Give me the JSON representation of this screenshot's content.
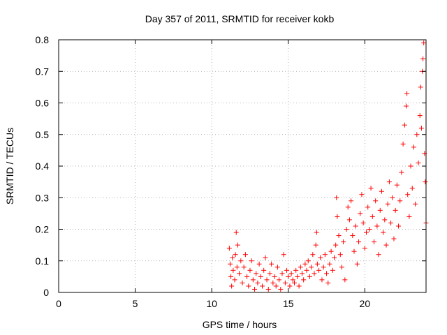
{
  "chart_data": {
    "type": "scatter",
    "title": "Day 357 of 2011, SRMTID for receiver kokb",
    "xlabel": "GPS time / hours",
    "ylabel": "SRMTID / TECUs",
    "xlim": [
      0,
      24
    ],
    "ylim": [
      0,
      0.8
    ],
    "xticks": [
      0,
      5,
      10,
      15,
      20
    ],
    "xtick_labels": [
      "0",
      "5",
      "10",
      "15",
      "20"
    ],
    "yticks": [
      0,
      0.1,
      0.2,
      0.3,
      0.4,
      0.5,
      0.6,
      0.7,
      0.8
    ],
    "ytick_labels": [
      "0",
      "0.1",
      "0.2",
      "0.3",
      "0.4",
      "0.5",
      "0.6",
      "0.7",
      "0.8"
    ],
    "grid": true,
    "marker": "+",
    "series": [
      {
        "name": "SRMTID",
        "color": "#ff0000",
        "points": [
          [
            11.15,
            0.14
          ],
          [
            11.2,
            0.09
          ],
          [
            11.25,
            0.05
          ],
          [
            11.3,
            0.02
          ],
          [
            11.35,
            0.11
          ],
          [
            11.4,
            0.07
          ],
          [
            11.5,
            0.04
          ],
          [
            11.55,
            0.12
          ],
          [
            11.6,
            0.19
          ],
          [
            11.65,
            0.08
          ],
          [
            11.7,
            0.15
          ],
          [
            11.8,
            0.06
          ],
          [
            11.9,
            0.1
          ],
          [
            12.0,
            0.03
          ],
          [
            12.1,
            0.08
          ],
          [
            12.2,
            0.12
          ],
          [
            12.3,
            0.05
          ],
          [
            12.4,
            0.02
          ],
          [
            12.5,
            0.07
          ],
          [
            12.6,
            0.1
          ],
          [
            12.7,
            0.04
          ],
          [
            12.8,
            0.01
          ],
          [
            12.9,
            0.06
          ],
          [
            13.0,
            0.03
          ],
          [
            13.1,
            0.09
          ],
          [
            13.2,
            0.05
          ],
          [
            13.3,
            0.02
          ],
          [
            13.4,
            0.07
          ],
          [
            13.5,
            0.11
          ],
          [
            13.6,
            0.04
          ],
          [
            13.7,
            0.01
          ],
          [
            13.8,
            0.06
          ],
          [
            13.9,
            0.09
          ],
          [
            14.0,
            0.03
          ],
          [
            14.1,
            0.05
          ],
          [
            14.2,
            0.02
          ],
          [
            14.3,
            0.08
          ],
          [
            14.4,
            0.04
          ],
          [
            14.5,
            0.01
          ],
          [
            14.6,
            0.06
          ],
          [
            14.7,
            0.12
          ],
          [
            14.8,
            0.03
          ],
          [
            14.9,
            0.07
          ],
          [
            15.0,
            0.05
          ],
          [
            15.1,
            0.02
          ],
          [
            15.2,
            0.06
          ],
          [
            15.3,
            0.04
          ],
          [
            15.4,
            0.03
          ],
          [
            15.5,
            0.07
          ],
          [
            15.6,
            0.05
          ],
          [
            15.7,
            0.02
          ],
          [
            15.8,
            0.08
          ],
          [
            15.9,
            0.06
          ],
          [
            16.0,
            0.04
          ],
          [
            16.1,
            0.09
          ],
          [
            16.2,
            0.07
          ],
          [
            16.3,
            0.1
          ],
          [
            16.4,
            0.05
          ],
          [
            16.5,
            0.08
          ],
          [
            16.6,
            0.12
          ],
          [
            16.7,
            0.06
          ],
          [
            16.8,
            0.15
          ],
          [
            16.85,
            0.19
          ],
          [
            16.9,
            0.09
          ],
          [
            17.0,
            0.07
          ],
          [
            17.1,
            0.11
          ],
          [
            17.2,
            0.04
          ],
          [
            17.3,
            0.08
          ],
          [
            17.4,
            0.12
          ],
          [
            17.5,
            0.06
          ],
          [
            17.6,
            0.03
          ],
          [
            17.7,
            0.09
          ],
          [
            17.8,
            0.13
          ],
          [
            17.9,
            0.07
          ],
          [
            18.0,
            0.11
          ],
          [
            18.1,
            0.15
          ],
          [
            18.15,
            0.3
          ],
          [
            18.2,
            0.24
          ],
          [
            18.3,
            0.18
          ],
          [
            18.4,
            0.12
          ],
          [
            18.5,
            0.08
          ],
          [
            18.6,
            0.16
          ],
          [
            18.7,
            0.04
          ],
          [
            18.8,
            0.2
          ],
          [
            18.9,
            0.27
          ],
          [
            19.0,
            0.23
          ],
          [
            19.1,
            0.29
          ],
          [
            19.2,
            0.18
          ],
          [
            19.3,
            0.13
          ],
          [
            19.4,
            0.21
          ],
          [
            19.5,
            0.09
          ],
          [
            19.6,
            0.16
          ],
          [
            19.7,
            0.25
          ],
          [
            19.8,
            0.31
          ],
          [
            19.9,
            0.22
          ],
          [
            20.0,
            0.14
          ],
          [
            20.1,
            0.19
          ],
          [
            20.2,
            0.27
          ],
          [
            20.3,
            0.2
          ],
          [
            20.4,
            0.33
          ],
          [
            20.5,
            0.24
          ],
          [
            20.6,
            0.16
          ],
          [
            20.7,
            0.29
          ],
          [
            20.8,
            0.21
          ],
          [
            20.9,
            0.12
          ],
          [
            21.0,
            0.26
          ],
          [
            21.1,
            0.32
          ],
          [
            21.2,
            0.19
          ],
          [
            21.3,
            0.23
          ],
          [
            21.4,
            0.15
          ],
          [
            21.5,
            0.28
          ],
          [
            21.6,
            0.35
          ],
          [
            21.7,
            0.22
          ],
          [
            21.8,
            0.3
          ],
          [
            21.9,
            0.17
          ],
          [
            22.0,
            0.26
          ],
          [
            22.1,
            0.34
          ],
          [
            22.2,
            0.21
          ],
          [
            22.3,
            0.29
          ],
          [
            22.4,
            0.38
          ],
          [
            22.5,
            0.47
          ],
          [
            22.6,
            0.53
          ],
          [
            22.7,
            0.59
          ],
          [
            22.75,
            0.63
          ],
          [
            22.8,
            0.31
          ],
          [
            22.9,
            0.24
          ],
          [
            23.0,
            0.4
          ],
          [
            23.1,
            0.33
          ],
          [
            23.2,
            0.46
          ],
          [
            23.3,
            0.28
          ],
          [
            23.4,
            0.5
          ],
          [
            23.5,
            0.41
          ],
          [
            23.6,
            0.56
          ],
          [
            23.65,
            0.65
          ],
          [
            23.7,
            0.52
          ],
          [
            23.75,
            0.7
          ],
          [
            23.8,
            0.74
          ],
          [
            23.85,
            0.79
          ],
          [
            23.9,
            0.44
          ],
          [
            23.95,
            0.35
          ],
          [
            24.0,
            0.22
          ]
        ]
      }
    ]
  }
}
